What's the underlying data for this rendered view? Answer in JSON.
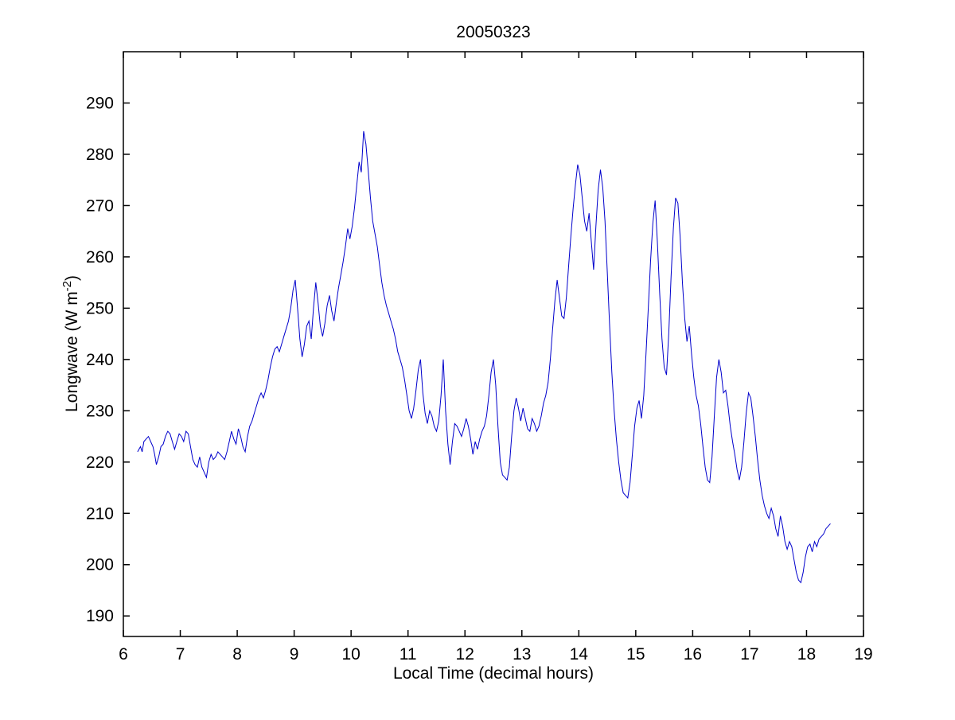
{
  "chart_data": {
    "type": "line",
    "title": "20050323",
    "xlabel": "Local Time (decimal hours)",
    "ylabel": "Longwave (W m⁻²)",
    "ylabel_parts": {
      "main": "Longwave (W m",
      "sup": "-2",
      "close": ")"
    },
    "xlim": [
      6,
      19
    ],
    "ylim": [
      186,
      300
    ],
    "xticks": [
      6,
      7,
      8,
      9,
      10,
      11,
      12,
      13,
      14,
      15,
      16,
      17,
      18,
      19
    ],
    "yticks": [
      190,
      200,
      210,
      220,
      230,
      240,
      250,
      260,
      270,
      280,
      290
    ],
    "grid": false,
    "legend": "none",
    "line_color": "#0000CC",
    "axis_color": "#000000",
    "series": [
      {
        "name": "Longwave",
        "points": [
          [
            6.25,
            222.0
          ],
          [
            6.3,
            223.0
          ],
          [
            6.33,
            222.0
          ],
          [
            6.36,
            224.0
          ],
          [
            6.4,
            224.5
          ],
          [
            6.44,
            225.0
          ],
          [
            6.48,
            224.0
          ],
          [
            6.52,
            223.0
          ],
          [
            6.55,
            221.5
          ],
          [
            6.58,
            219.5
          ],
          [
            6.62,
            221.0
          ],
          [
            6.66,
            223.0
          ],
          [
            6.7,
            223.5
          ],
          [
            6.74,
            225.0
          ],
          [
            6.78,
            226.0
          ],
          [
            6.82,
            225.5
          ],
          [
            6.86,
            224.0
          ],
          [
            6.9,
            222.5
          ],
          [
            6.94,
            224.0
          ],
          [
            6.98,
            225.5
          ],
          [
            7.02,
            225.0
          ],
          [
            7.06,
            224.0
          ],
          [
            7.1,
            226.0
          ],
          [
            7.14,
            225.5
          ],
          [
            7.18,
            223.0
          ],
          [
            7.22,
            220.5
          ],
          [
            7.26,
            219.5
          ],
          [
            7.3,
            219.0
          ],
          [
            7.34,
            221.0
          ],
          [
            7.38,
            219.0
          ],
          [
            7.42,
            218.0
          ],
          [
            7.46,
            217.0
          ],
          [
            7.5,
            220.0
          ],
          [
            7.54,
            221.5
          ],
          [
            7.58,
            220.5
          ],
          [
            7.62,
            221.0
          ],
          [
            7.66,
            222.0
          ],
          [
            7.7,
            221.5
          ],
          [
            7.74,
            221.0
          ],
          [
            7.78,
            220.5
          ],
          [
            7.82,
            222.0
          ],
          [
            7.86,
            224.0
          ],
          [
            7.9,
            226.0
          ],
          [
            7.94,
            224.5
          ],
          [
            7.98,
            223.5
          ],
          [
            8.02,
            226.5
          ],
          [
            8.06,
            225.0
          ],
          [
            8.1,
            223.0
          ],
          [
            8.14,
            222.0
          ],
          [
            8.18,
            225.0
          ],
          [
            8.22,
            227.0
          ],
          [
            8.26,
            228.0
          ],
          [
            8.3,
            229.5
          ],
          [
            8.34,
            231.0
          ],
          [
            8.38,
            232.5
          ],
          [
            8.42,
            233.5
          ],
          [
            8.46,
            232.5
          ],
          [
            8.5,
            234.0
          ],
          [
            8.54,
            236.0
          ],
          [
            8.58,
            238.5
          ],
          [
            8.62,
            240.5
          ],
          [
            8.66,
            242.0
          ],
          [
            8.7,
            242.5
          ],
          [
            8.74,
            241.5
          ],
          [
            8.78,
            243.0
          ],
          [
            8.82,
            244.5
          ],
          [
            8.86,
            246.0
          ],
          [
            8.9,
            247.5
          ],
          [
            8.94,
            250.0
          ],
          [
            8.98,
            253.5
          ],
          [
            9.02,
            255.5
          ],
          [
            9.06,
            250.0
          ],
          [
            9.1,
            244.0
          ],
          [
            9.14,
            240.5
          ],
          [
            9.18,
            243.0
          ],
          [
            9.22,
            246.5
          ],
          [
            9.26,
            247.5
          ],
          [
            9.3,
            244.0
          ],
          [
            9.34,
            250.0
          ],
          [
            9.38,
            255.0
          ],
          [
            9.42,
            251.0
          ],
          [
            9.46,
            246.5
          ],
          [
            9.5,
            244.5
          ],
          [
            9.54,
            247.0
          ],
          [
            9.58,
            250.5
          ],
          [
            9.62,
            252.5
          ],
          [
            9.66,
            249.5
          ],
          [
            9.7,
            247.5
          ],
          [
            9.74,
            251.0
          ],
          [
            9.78,
            254.0
          ],
          [
            9.82,
            256.5
          ],
          [
            9.86,
            259.0
          ],
          [
            9.9,
            262.0
          ],
          [
            9.94,
            265.5
          ],
          [
            9.98,
            263.5
          ],
          [
            10.02,
            266.0
          ],
          [
            10.06,
            269.5
          ],
          [
            10.1,
            274.0
          ],
          [
            10.14,
            278.5
          ],
          [
            10.18,
            276.5
          ],
          [
            10.22,
            284.5
          ],
          [
            10.26,
            282.0
          ],
          [
            10.3,
            277.0
          ],
          [
            10.34,
            271.5
          ],
          [
            10.38,
            267.0
          ],
          [
            10.42,
            264.5
          ],
          [
            10.46,
            262.0
          ],
          [
            10.5,
            258.5
          ],
          [
            10.54,
            255.0
          ],
          [
            10.58,
            252.5
          ],
          [
            10.62,
            250.5
          ],
          [
            10.66,
            249.0
          ],
          [
            10.7,
            247.5
          ],
          [
            10.74,
            246.0
          ],
          [
            10.78,
            244.0
          ],
          [
            10.82,
            241.5
          ],
          [
            10.86,
            240.0
          ],
          [
            10.9,
            238.5
          ],
          [
            10.94,
            236.0
          ],
          [
            10.98,
            233.0
          ],
          [
            11.02,
            230.0
          ],
          [
            11.06,
            228.5
          ],
          [
            11.1,
            230.5
          ],
          [
            11.14,
            234.0
          ],
          [
            11.18,
            238.0
          ],
          [
            11.22,
            240.0
          ],
          [
            11.26,
            233.5
          ],
          [
            11.3,
            229.5
          ],
          [
            11.34,
            227.5
          ],
          [
            11.38,
            230.0
          ],
          [
            11.42,
            229.0
          ],
          [
            11.46,
            227.0
          ],
          [
            11.5,
            226.0
          ],
          [
            11.54,
            228.0
          ],
          [
            11.58,
            233.0
          ],
          [
            11.62,
            240.0
          ],
          [
            11.66,
            230.0
          ],
          [
            11.7,
            223.5
          ],
          [
            11.74,
            219.5
          ],
          [
            11.78,
            224.0
          ],
          [
            11.82,
            227.5
          ],
          [
            11.86,
            227.0
          ],
          [
            11.9,
            226.0
          ],
          [
            11.94,
            225.0
          ],
          [
            11.98,
            226.5
          ],
          [
            12.02,
            228.5
          ],
          [
            12.06,
            227.0
          ],
          [
            12.1,
            224.5
          ],
          [
            12.14,
            221.5
          ],
          [
            12.18,
            224.0
          ],
          [
            12.22,
            222.5
          ],
          [
            12.26,
            224.5
          ],
          [
            12.3,
            226.0
          ],
          [
            12.34,
            227.0
          ],
          [
            12.38,
            229.0
          ],
          [
            12.42,
            233.0
          ],
          [
            12.46,
            237.5
          ],
          [
            12.5,
            240.0
          ],
          [
            12.54,
            235.0
          ],
          [
            12.58,
            227.0
          ],
          [
            12.62,
            220.0
          ],
          [
            12.66,
            217.5
          ],
          [
            12.7,
            217.0
          ],
          [
            12.74,
            216.5
          ],
          [
            12.78,
            219.0
          ],
          [
            12.82,
            225.0
          ],
          [
            12.86,
            230.0
          ],
          [
            12.9,
            232.5
          ],
          [
            12.94,
            230.5
          ],
          [
            12.98,
            228.0
          ],
          [
            13.02,
            230.5
          ],
          [
            13.06,
            228.5
          ],
          [
            13.1,
            226.5
          ],
          [
            13.14,
            226.0
          ],
          [
            13.18,
            228.5
          ],
          [
            13.22,
            227.5
          ],
          [
            13.26,
            226.0
          ],
          [
            13.3,
            227.0
          ],
          [
            13.34,
            229.0
          ],
          [
            13.38,
            231.5
          ],
          [
            13.42,
            233.0
          ],
          [
            13.46,
            235.5
          ],
          [
            13.5,
            240.0
          ],
          [
            13.54,
            246.0
          ],
          [
            13.58,
            251.5
          ],
          [
            13.62,
            255.5
          ],
          [
            13.66,
            252.0
          ],
          [
            13.7,
            248.5
          ],
          [
            13.74,
            248.0
          ],
          [
            13.78,
            252.0
          ],
          [
            13.82,
            258.0
          ],
          [
            13.86,
            264.0
          ],
          [
            13.9,
            269.5
          ],
          [
            13.94,
            274.0
          ],
          [
            13.98,
            278.0
          ],
          [
            14.02,
            276.0
          ],
          [
            14.06,
            271.5
          ],
          [
            14.1,
            267.0
          ],
          [
            14.14,
            265.0
          ],
          [
            14.18,
            268.5
          ],
          [
            14.22,
            263.0
          ],
          [
            14.26,
            257.5
          ],
          [
            14.3,
            266.0
          ],
          [
            14.34,
            273.0
          ],
          [
            14.38,
            277.0
          ],
          [
            14.42,
            273.5
          ],
          [
            14.46,
            267.0
          ],
          [
            14.5,
            257.0
          ],
          [
            14.54,
            247.0
          ],
          [
            14.58,
            237.5
          ],
          [
            14.62,
            230.0
          ],
          [
            14.66,
            224.5
          ],
          [
            14.7,
            220.0
          ],
          [
            14.74,
            216.5
          ],
          [
            14.78,
            214.0
          ],
          [
            14.82,
            213.5
          ],
          [
            14.86,
            213.0
          ],
          [
            14.9,
            216.0
          ],
          [
            14.94,
            221.5
          ],
          [
            14.98,
            227.0
          ],
          [
            15.02,
            230.5
          ],
          [
            15.06,
            232.0
          ],
          [
            15.1,
            228.5
          ],
          [
            15.14,
            233.0
          ],
          [
            15.18,
            241.0
          ],
          [
            15.22,
            250.0
          ],
          [
            15.26,
            259.0
          ],
          [
            15.3,
            266.5
          ],
          [
            15.34,
            271.0
          ],
          [
            15.38,
            263.0
          ],
          [
            15.42,
            253.0
          ],
          [
            15.46,
            244.0
          ],
          [
            15.5,
            238.5
          ],
          [
            15.54,
            237.0
          ],
          [
            15.58,
            245.0
          ],
          [
            15.62,
            256.0
          ],
          [
            15.66,
            265.5
          ],
          [
            15.7,
            271.5
          ],
          [
            15.74,
            270.5
          ],
          [
            15.78,
            264.0
          ],
          [
            15.82,
            255.0
          ],
          [
            15.86,
            248.0
          ],
          [
            15.9,
            243.5
          ],
          [
            15.94,
            246.5
          ],
          [
            15.98,
            241.0
          ],
          [
            16.02,
            236.5
          ],
          [
            16.06,
            233.0
          ],
          [
            16.1,
            231.0
          ],
          [
            16.14,
            227.5
          ],
          [
            16.18,
            223.0
          ],
          [
            16.22,
            219.0
          ],
          [
            16.26,
            216.5
          ],
          [
            16.3,
            216.0
          ],
          [
            16.34,
            221.0
          ],
          [
            16.38,
            229.0
          ],
          [
            16.42,
            236.5
          ],
          [
            16.46,
            240.0
          ],
          [
            16.5,
            237.5
          ],
          [
            16.54,
            233.5
          ],
          [
            16.58,
            234.0
          ],
          [
            16.62,
            231.0
          ],
          [
            16.66,
            227.0
          ],
          [
            16.7,
            224.0
          ],
          [
            16.74,
            221.5
          ],
          [
            16.78,
            218.5
          ],
          [
            16.82,
            216.5
          ],
          [
            16.86,
            219.0
          ],
          [
            16.9,
            224.0
          ],
          [
            16.94,
            229.5
          ],
          [
            16.98,
            233.5
          ],
          [
            17.02,
            232.5
          ],
          [
            17.06,
            229.0
          ],
          [
            17.1,
            225.0
          ],
          [
            17.14,
            220.5
          ],
          [
            17.18,
            216.5
          ],
          [
            17.22,
            213.5
          ],
          [
            17.26,
            211.5
          ],
          [
            17.3,
            210.0
          ],
          [
            17.34,
            209.0
          ],
          [
            17.38,
            211.0
          ],
          [
            17.42,
            209.5
          ],
          [
            17.46,
            207.0
          ],
          [
            17.5,
            205.5
          ],
          [
            17.54,
            209.5
          ],
          [
            17.58,
            207.5
          ],
          [
            17.62,
            204.5
          ],
          [
            17.66,
            203.0
          ],
          [
            17.7,
            204.5
          ],
          [
            17.74,
            203.5
          ],
          [
            17.78,
            201.0
          ],
          [
            17.82,
            198.5
          ],
          [
            17.86,
            197.0
          ],
          [
            17.9,
            196.5
          ],
          [
            17.94,
            198.5
          ],
          [
            17.98,
            201.5
          ],
          [
            18.02,
            203.5
          ],
          [
            18.06,
            204.0
          ],
          [
            18.1,
            202.5
          ],
          [
            18.14,
            204.5
          ],
          [
            18.18,
            203.5
          ],
          [
            18.22,
            205.0
          ],
          [
            18.26,
            205.5
          ],
          [
            18.3,
            206.0
          ],
          [
            18.34,
            207.0
          ],
          [
            18.38,
            207.5
          ],
          [
            18.42,
            208.0
          ]
        ]
      }
    ]
  }
}
